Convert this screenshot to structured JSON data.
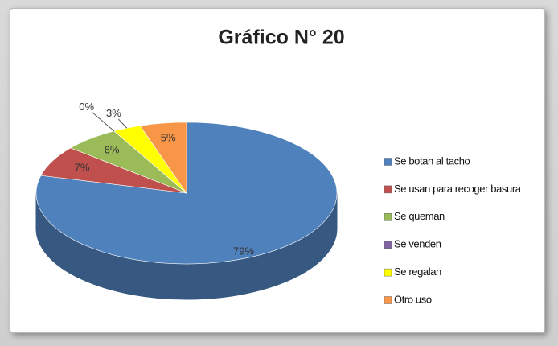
{
  "chart_data": {
    "type": "pie",
    "title": "Gráfico N° 20",
    "categories": [
      "Se botan al tacho",
      "Se usan para recoger basura",
      "Se queman",
      "Se venden",
      "Se regalan",
      "Otro uso"
    ],
    "values": [
      79,
      7,
      6,
      0,
      3,
      5
    ],
    "value_labels": [
      "79%",
      "7%",
      "6%",
      "0%",
      "3%",
      "5%"
    ],
    "colors": [
      "#4f81bd",
      "#c0504d",
      "#9bbb59",
      "#8064a2",
      "#ffff00",
      "#f79646"
    ],
    "legend": "right"
  }
}
